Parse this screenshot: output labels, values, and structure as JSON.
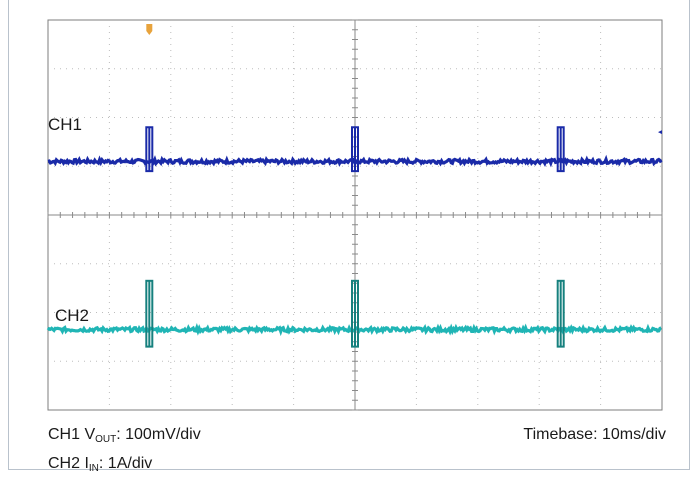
{
  "chart_data": {
    "type": "line",
    "title": "",
    "grid": true,
    "grid_divisions": {
      "x": 10,
      "y": 8
    },
    "timebase_ms_per_div": 10,
    "x_range_ms": [
      0,
      100
    ],
    "trigger_marker_color": "#e8a33c",
    "series": [
      {
        "name": "CH1",
        "color": "#1a2aa8",
        "baseline_div": 5.1,
        "pulse_times_ms": [
          16.5,
          50,
          83.5
        ],
        "pulse_high_div": 0.7,
        "pulse_low_div": -0.2,
        "noise_div": 0.04
      },
      {
        "name": "CH2",
        "color": "#20b5b5",
        "spike_color": "#16807e",
        "baseline_div": 1.65,
        "pulse_times_ms": [
          16.5,
          50,
          83.5
        ],
        "pulse_high_div": 1.0,
        "pulse_low_div": -0.35,
        "noise_div": 0.04
      }
    ]
  },
  "labels": {
    "ch1": "CH1",
    "ch2": "CH2"
  },
  "captions": {
    "ch1_prefix": "CH1 V",
    "ch1_sub": "OUT",
    "ch1_suffix": ": 100mV/div",
    "ch2_prefix": "CH2 I",
    "ch2_sub": "IN",
    "ch2_suffix": ": 1A/div",
    "timebase": "Timebase: 10ms/div"
  }
}
